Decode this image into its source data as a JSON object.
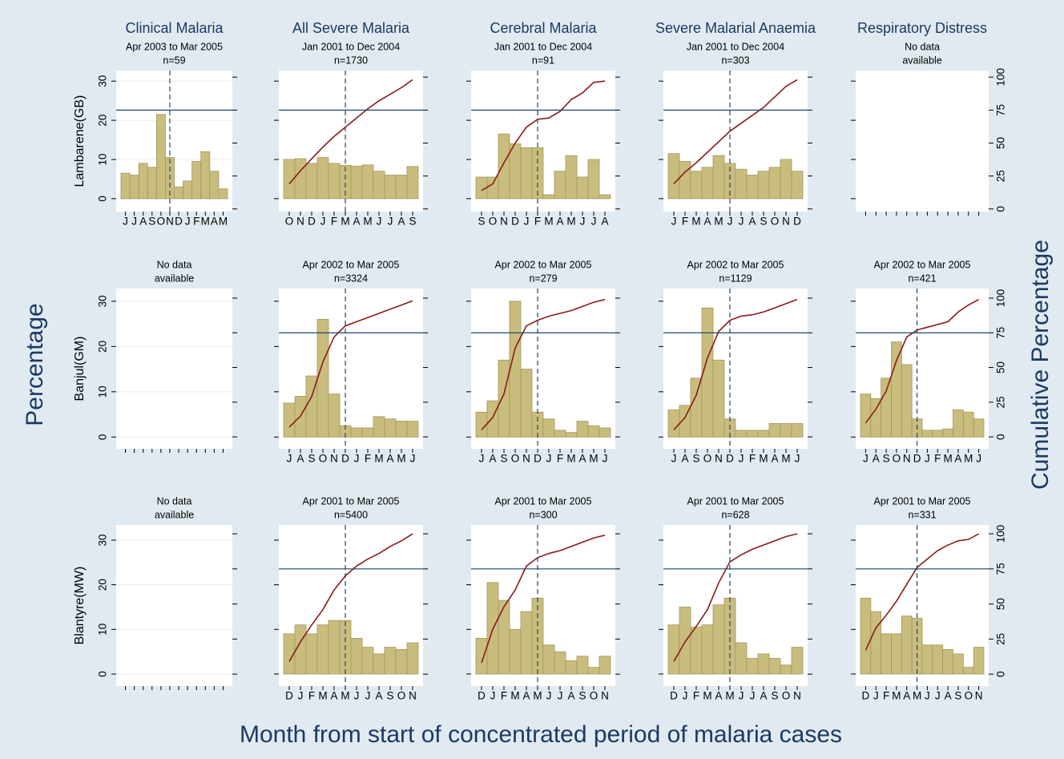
{
  "columns": [
    "Clinical Malaria",
    "All Severe Malaria",
    "Cerebral Malaria",
    "Severe Malarial Anaemia",
    "Respiratory Distress"
  ],
  "rows": [
    "Lambarene(GB)",
    "Banjul(GM)",
    "Blantyre(MW)"
  ],
  "xlabel": "Month from start of concentrated period of malaria cases",
  "ylabel": "Percentage",
  "y2label": "Cumulative Percentage",
  "chart_data": [
    {
      "type": "bar",
      "subtitle": [
        "Apr 2003 to Mar 2005"
      ],
      "note": "n=59",
      "grid": true,
      "categories": [
        "J",
        "J",
        "A",
        "S",
        "O",
        "N",
        "D",
        "J",
        "F",
        "M",
        "A",
        "M"
      ],
      "series": [
        {
          "color": "#c9bd7e",
          "values": [
            6.5,
            6,
            9,
            8,
            21.5,
            10.5,
            3,
            4.5,
            9.5,
            12,
            7,
            2.5
          ]
        }
      ],
      "hline": 75,
      "vline": 5,
      "ylim": [
        -3.3,
        32.7
      ],
      "yticks": [
        0,
        10,
        20,
        30
      ],
      "y2lim": [
        -2,
        105
      ],
      "y2ticks": [
        0,
        25,
        50,
        75,
        100
      ]
    },
    {
      "type": "bar",
      "subtitle": [
        "Jan 2001 to Dec 2004"
      ],
      "note": "n=1730",
      "grid": false,
      "categories": [
        "O",
        "N",
        "D",
        "J",
        "F",
        "M",
        "A",
        "M",
        "J",
        "J",
        "A",
        "S"
      ],
      "series": [
        {
          "color": "#c9bd7e",
          "values": [
            10,
            10.2,
            9,
            10.5,
            9,
            8.5,
            8.3,
            8.6,
            7,
            6,
            6,
            8.2
          ]
        },
        {
          "color": "#8b1a1a",
          "axis": "y2",
          "values": [
            19,
            29,
            38,
            47,
            55,
            62,
            69,
            76,
            82,
            87,
            92,
            98
          ]
        }
      ],
      "hline": 75,
      "vline": 5,
      "ylim": [
        -3.3,
        32.7
      ],
      "yticks": [
        0,
        10,
        20,
        30
      ],
      "y2lim": [
        -2,
        105
      ],
      "y2ticks": [
        0,
        25,
        50,
        75,
        100
      ]
    },
    {
      "type": "bar",
      "subtitle": [
        "Jan 2001 to Dec 2004"
      ],
      "note": "n=91",
      "grid": false,
      "categories": [
        "S",
        "O",
        "N",
        "D",
        "J",
        "F",
        "M",
        "A",
        "M",
        "J",
        "J",
        "A"
      ],
      "series": [
        {
          "color": "#c9bd7e",
          "values": [
            5.5,
            5.5,
            16.5,
            14,
            13,
            13,
            1,
            7,
            11,
            5.5,
            10,
            1
          ]
        },
        {
          "color": "#8b1a1a",
          "axis": "y2",
          "values": [
            14,
            19,
            35,
            50,
            62,
            68,
            69,
            74,
            83,
            88,
            96,
            97
          ]
        }
      ],
      "hline": 75,
      "vline": 5,
      "ylim": [
        -3.3,
        32.7
      ],
      "yticks": [
        0,
        10,
        20,
        30
      ],
      "y2lim": [
        -2,
        105
      ],
      "y2ticks": [
        0,
        25,
        50,
        75,
        100
      ]
    },
    {
      "type": "bar",
      "subtitle": [
        "Jan 2001 to Dec 2004"
      ],
      "note": "n=303",
      "grid": false,
      "categories": [
        "J",
        "F",
        "M",
        "A",
        "M",
        "J",
        "J",
        "A",
        "S",
        "O",
        "N",
        "D"
      ],
      "series": [
        {
          "color": "#c9bd7e",
          "values": [
            11.5,
            9.5,
            7,
            8,
            11,
            9,
            7.5,
            6,
            7,
            8,
            10,
            7
          ]
        },
        {
          "color": "#8b1a1a",
          "axis": "y2",
          "values": [
            19,
            28,
            35,
            43,
            51,
            59,
            65,
            71,
            77,
            85,
            93,
            98
          ]
        }
      ],
      "hline": 75,
      "vline": 5,
      "ylim": [
        -3.3,
        32.7
      ],
      "yticks": [
        0,
        10,
        20,
        30
      ],
      "y2lim": [
        -2,
        105
      ],
      "y2ticks": [
        0,
        25,
        50,
        75,
        100
      ]
    },
    {
      "type": "bar",
      "subtitle": [
        "No data",
        "available"
      ],
      "grid": false,
      "ylim": [
        -3.3,
        32.7
      ],
      "yticks": [
        0,
        10,
        20,
        30
      ],
      "y2lim": [
        -2,
        105
      ],
      "y2ticks": [
        0,
        25,
        50,
        75,
        100
      ]
    },
    {
      "type": "bar",
      "subtitle": [
        "No data",
        "available"
      ],
      "grid": true,
      "ylim": [
        -2.6,
        32.8
      ],
      "yticks": [
        0,
        10,
        20,
        30
      ],
      "y2lim": [
        -8.6,
        106.9
      ],
      "y2ticks": [
        0,
        25,
        50,
        75,
        100
      ]
    },
    {
      "type": "bar",
      "subtitle": [
        "Apr 2002 to Mar 2005"
      ],
      "note": "n=3324",
      "grid": false,
      "categories": [
        "J",
        "A",
        "S",
        "O",
        "N",
        "D",
        "J",
        "F",
        "M",
        "A",
        "M",
        "J"
      ],
      "series": [
        {
          "color": "#c9bd7e",
          "values": [
            7.5,
            9,
            13.5,
            26,
            9.5,
            2.5,
            2,
            2,
            4.5,
            4,
            3.5,
            3.5
          ]
        },
        {
          "color": "#8b1a1a",
          "axis": "y2",
          "values": [
            7,
            15,
            29,
            54,
            72,
            80,
            83,
            86,
            89,
            92,
            95,
            98
          ]
        }
      ],
      "hline": 75,
      "vline": 5,
      "ylim": [
        -2.6,
        32.8
      ],
      "yticks": [
        0,
        10,
        20,
        30
      ],
      "y2lim": [
        -8.6,
        106.9
      ],
      "y2ticks": [
        0,
        25,
        50,
        75,
        100
      ]
    },
    {
      "type": "bar",
      "subtitle": [
        "Apr 2002 to Mar 2005"
      ],
      "note": "n=279",
      "grid": false,
      "categories": [
        "J",
        "A",
        "S",
        "O",
        "N",
        "D",
        "J",
        "F",
        "M",
        "A",
        "M",
        "J"
      ],
      "series": [
        {
          "color": "#c9bd7e",
          "values": [
            5.5,
            8,
            17,
            30,
            15,
            5.5,
            4,
            1.5,
            1,
            3.5,
            2.5,
            2
          ]
        },
        {
          "color": "#8b1a1a",
          "axis": "y2",
          "values": [
            5,
            14,
            31,
            64,
            80,
            84,
            87,
            89,
            91,
            94,
            97,
            99
          ]
        }
      ],
      "hline": 75,
      "vline": 5,
      "ylim": [
        -2.6,
        32.8
      ],
      "yticks": [
        0,
        10,
        20,
        30
      ],
      "y2lim": [
        -8.6,
        106.9
      ],
      "y2ticks": [
        0,
        25,
        50,
        75,
        100
      ]
    },
    {
      "type": "bar",
      "subtitle": [
        "Apr 2002 to Mar 2005"
      ],
      "note": "n=1129",
      "grid": false,
      "categories": [
        "J",
        "A",
        "S",
        "O",
        "N",
        "D",
        "J",
        "F",
        "M",
        "A",
        "M",
        "J"
      ],
      "series": [
        {
          "color": "#c9bd7e",
          "values": [
            6,
            7,
            13,
            28.5,
            17,
            4,
            1.5,
            1.5,
            1.5,
            3,
            3,
            3
          ]
        },
        {
          "color": "#8b1a1a",
          "axis": "y2",
          "values": [
            5,
            14,
            30,
            57,
            76,
            84,
            87,
            88,
            90,
            93,
            96,
            99
          ]
        }
      ],
      "hline": 75,
      "vline": 5,
      "ylim": [
        -2.6,
        32.8
      ],
      "yticks": [
        0,
        10,
        20,
        30
      ],
      "y2lim": [
        -8.6,
        106.9
      ],
      "y2ticks": [
        0,
        25,
        50,
        75,
        100
      ]
    },
    {
      "type": "bar",
      "subtitle": [
        "Apr 2002 to Mar 2005"
      ],
      "note": "n=421",
      "grid": false,
      "categories": [
        "J",
        "A",
        "S",
        "O",
        "N",
        "D",
        "J",
        "F",
        "M",
        "A",
        "M",
        "J"
      ],
      "series": [
        {
          "color": "#c9bd7e",
          "values": [
            9.5,
            8.5,
            13,
            21,
            16,
            4,
            1.5,
            1.5,
            1.8,
            6,
            5.5,
            4
          ]
        },
        {
          "color": "#8b1a1a",
          "axis": "y2",
          "values": [
            10,
            20,
            33,
            55,
            72,
            77,
            79,
            81,
            83,
            90,
            95,
            99
          ]
        }
      ],
      "hline": 75,
      "vline": 5,
      "ylim": [
        -2.6,
        32.8
      ],
      "yticks": [
        0,
        10,
        20,
        30
      ],
      "y2lim": [
        -8.6,
        106.9
      ],
      "y2ticks": [
        0,
        25,
        50,
        75,
        100
      ]
    },
    {
      "type": "bar",
      "subtitle": [
        "No data",
        "available"
      ],
      "grid": true,
      "ylim": [
        -2.7,
        33.4
      ],
      "yticks": [
        0,
        10,
        20,
        30
      ],
      "y2lim": [
        -8.5,
        106.3
      ],
      "y2ticks": [
        0,
        25,
        50,
        75,
        100
      ]
    },
    {
      "type": "bar",
      "subtitle": [
        "Apr 2001 to Mar 2005"
      ],
      "note": "n=5400",
      "grid": false,
      "categories": [
        "D",
        "J",
        "F",
        "M",
        "A",
        "M",
        "J",
        "J",
        "A",
        "S",
        "O",
        "N"
      ],
      "series": [
        {
          "color": "#c9bd7e",
          "values": [
            9,
            11,
            9,
            11,
            12,
            12,
            8,
            6,
            4.5,
            6,
            5.5,
            7
          ]
        },
        {
          "color": "#8b1a1a",
          "axis": "y2",
          "values": [
            9,
            23,
            35,
            46,
            60,
            70,
            77,
            82,
            86,
            91,
            95,
            100
          ]
        }
      ],
      "hline": 75,
      "vline": 5,
      "ylim": [
        -2.7,
        33.4
      ],
      "yticks": [
        0,
        10,
        20,
        30
      ],
      "y2lim": [
        -8.5,
        106.3
      ],
      "y2ticks": [
        0,
        25,
        50,
        75,
        100
      ]
    },
    {
      "type": "bar",
      "subtitle": [
        "Apr 2001 to Mar 2005"
      ],
      "note": "n=300",
      "grid": false,
      "categories": [
        "D",
        "J",
        "F",
        "M",
        "A",
        "M",
        "J",
        "J",
        "A",
        "S",
        "O",
        "N"
      ],
      "series": [
        {
          "color": "#c9bd7e",
          "values": [
            8,
            20.5,
            16.5,
            10,
            14,
            17,
            6.5,
            5,
            3,
            4,
            1.5,
            4
          ]
        },
        {
          "color": "#8b1a1a",
          "axis": "y2",
          "values": [
            8,
            32,
            48,
            60,
            77,
            83,
            86,
            88,
            91,
            94,
            97,
            99
          ]
        }
      ],
      "hline": 75,
      "vline": 5,
      "ylim": [
        -2.7,
        33.4
      ],
      "yticks": [
        0,
        10,
        20,
        30
      ],
      "y2lim": [
        -8.5,
        106.3
      ],
      "y2ticks": [
        0,
        25,
        50,
        75,
        100
      ]
    },
    {
      "type": "bar",
      "subtitle": [
        "Apr 2001 to Mar 2005"
      ],
      "note": "n=628",
      "grid": false,
      "categories": [
        "D",
        "J",
        "F",
        "M",
        "A",
        "M",
        "J",
        "J",
        "A",
        "S",
        "O",
        "N"
      ],
      "series": [
        {
          "color": "#c9bd7e",
          "values": [
            11,
            15,
            10.5,
            11,
            15.5,
            17,
            7,
            3.5,
            4.5,
            3.5,
            2,
            6
          ]
        },
        {
          "color": "#8b1a1a",
          "axis": "y2",
          "values": [
            9,
            23,
            34,
            46,
            65,
            80,
            85,
            89,
            92,
            95,
            98,
            100
          ]
        }
      ],
      "hline": 75,
      "vline": 5,
      "ylim": [
        -2.7,
        33.4
      ],
      "yticks": [
        0,
        10,
        20,
        30
      ],
      "y2lim": [
        -8.5,
        106.3
      ],
      "y2ticks": [
        0,
        25,
        50,
        75,
        100
      ]
    },
    {
      "type": "bar",
      "subtitle": [
        "Apr 2001 to Mar 2005"
      ],
      "note": "n=331",
      "grid": false,
      "categories": [
        "D",
        "J",
        "F",
        "M",
        "A",
        "M",
        "J",
        "J",
        "A",
        "S",
        "O",
        "N"
      ],
      "series": [
        {
          "color": "#c9bd7e",
          "values": [
            17,
            14,
            9,
            9,
            13,
            12.5,
            6.5,
            6.5,
            5.5,
            4.5,
            1.5,
            6
          ]
        },
        {
          "color": "#8b1a1a",
          "axis": "y2",
          "values": [
            17,
            33,
            42,
            52,
            64,
            76,
            82,
            88,
            92,
            95,
            96,
            100
          ]
        }
      ],
      "hline": 75,
      "vline": 5,
      "ylim": [
        -2.7,
        33.4
      ],
      "yticks": [
        0,
        10,
        20,
        30
      ],
      "y2lim": [
        -8.5,
        106.3
      ],
      "y2ticks": [
        0,
        25,
        50,
        75,
        100
      ]
    }
  ]
}
